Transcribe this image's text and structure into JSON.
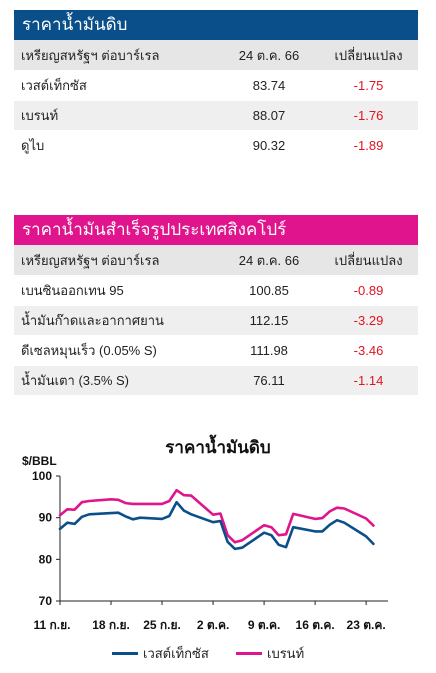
{
  "crude": {
    "title": "ราคาน้ำมันดิบ",
    "header": {
      "name": "เหรียญสหรัฐฯ ต่อบาร์เรล",
      "date": "24 ต.ค. 66",
      "change": "เปลี่ยนแปลง"
    },
    "rows": [
      {
        "name": "เวสต์เท็กซัส",
        "price": "83.74",
        "change": "-1.75"
      },
      {
        "name": "เบรนท์",
        "price": "88.07",
        "change": "-1.76"
      },
      {
        "name": "ดูไบ",
        "price": "90.32",
        "change": "-1.89"
      }
    ]
  },
  "singapore": {
    "title": "ราคาน้ำมันสำเร็จรูปประเทศสิงคโปร์",
    "header": {
      "name": "เหรียญสหรัฐฯ ต่อบาร์เรล",
      "date": "24 ต.ค. 66",
      "change": "เปลี่ยนแปลง"
    },
    "rows": [
      {
        "name": "เบนซินออกเทน 95",
        "price": "100.85",
        "change": "-0.89"
      },
      {
        "name": "น้ำมันก๊าดและอากาศยาน",
        "price": "112.15",
        "change": "-3.29"
      },
      {
        "name": "ดีเซลหมุนเร็ว (0.05% S)",
        "price": "111.98",
        "change": "-3.46"
      },
      {
        "name": "น้ำมันเตา (3.5% S)",
        "price": "76.11",
        "change": "-1.14"
      }
    ]
  },
  "colors": {
    "wti": "#0b4f8a",
    "brent": "#e0148c",
    "negative": "#e0141f"
  },
  "chart_data": {
    "type": "line",
    "title": "ราคาน้ำมันดิบ",
    "ylabel": "$/BBL",
    "ylim": [
      70,
      100
    ],
    "yticks": [
      70,
      80,
      90,
      100
    ],
    "xtick_labels": [
      "11 ก.ย.",
      "18 ก.ย.",
      "25 ก.ย.",
      "2 ต.ค.",
      "9 ต.ค.",
      "16 ต.ค.",
      "23 ต.ค."
    ],
    "x": [
      "2023-09-11",
      "2023-09-12",
      "2023-09-13",
      "2023-09-14",
      "2023-09-15",
      "2023-09-18",
      "2023-09-19",
      "2023-09-20",
      "2023-09-21",
      "2023-09-22",
      "2023-09-25",
      "2023-09-26",
      "2023-09-27",
      "2023-09-28",
      "2023-09-29",
      "2023-10-02",
      "2023-10-03",
      "2023-10-04",
      "2023-10-05",
      "2023-10-06",
      "2023-10-09",
      "2023-10-10",
      "2023-10-11",
      "2023-10-12",
      "2023-10-13",
      "2023-10-16",
      "2023-10-17",
      "2023-10-18",
      "2023-10-19",
      "2023-10-20",
      "2023-10-23",
      "2023-10-24"
    ],
    "series": [
      {
        "name": "เวสต์เท็กซัส",
        "values": [
          87.3,
          88.8,
          88.5,
          90.2,
          90.8,
          91.1,
          91.2,
          90.3,
          89.6,
          90.0,
          89.7,
          90.4,
          93.7,
          91.7,
          90.8,
          88.9,
          89.2,
          84.2,
          82.5,
          82.8,
          86.4,
          85.8,
          83.5,
          82.9,
          87.7,
          86.7,
          86.7,
          88.3,
          89.4,
          88.8,
          85.5,
          83.7
        ]
      },
      {
        "name": "เบรนท์",
        "values": [
          90.6,
          92.0,
          91.9,
          93.7,
          94.0,
          94.4,
          94.3,
          93.5,
          93.3,
          93.3,
          93.3,
          94.0,
          96.6,
          95.4,
          95.3,
          90.7,
          91.0,
          85.8,
          84.1,
          84.6,
          88.2,
          87.7,
          85.8,
          86.0,
          90.9,
          89.7,
          89.9,
          91.5,
          92.4,
          92.2,
          89.8,
          88.1
        ]
      }
    ]
  }
}
